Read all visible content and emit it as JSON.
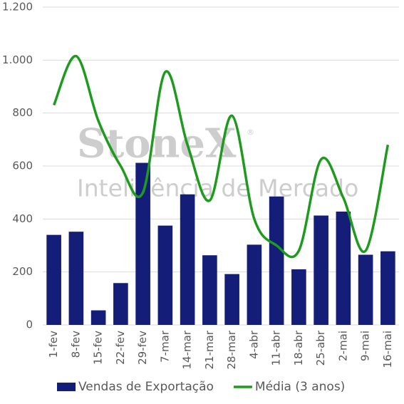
{
  "chart_data": {
    "type": "bar_line",
    "categories": [
      "1-fev",
      "8-fev",
      "15-fev",
      "22-fev",
      "29-fev",
      "7-mar",
      "14-mar",
      "21-mar",
      "28-mar",
      "4-abr",
      "11-abr",
      "18-abr",
      "25-abr",
      "2-mai",
      "9-mai",
      "16-mai"
    ],
    "series": [
      {
        "name": "Vendas de Exportação",
        "type": "bar",
        "color": "#141e78",
        "values": [
          340,
          352,
          55,
          158,
          612,
          375,
          493,
          263,
          192,
          303,
          485,
          210,
          413,
          428,
          265,
          278
        ]
      },
      {
        "name": "Média (3 anos)",
        "type": "line",
        "color": "#1e9a1e",
        "values": [
          830,
          1015,
          770,
          600,
          500,
          955,
          680,
          470,
          790,
          400,
          300,
          280,
          625,
          480,
          280,
          680
        ]
      }
    ],
    "ylim": [
      0,
      1200
    ],
    "yticks": [
      0,
      200,
      400,
      600,
      800,
      {
        "value": 1000,
        "label": "1.000"
      },
      {
        "value": 1200,
        "label": "1.200"
      }
    ],
    "grid": true,
    "legend": "bottom",
    "watermark": [
      "StoneX",
      "®",
      "Inteligência de Mercado"
    ]
  }
}
